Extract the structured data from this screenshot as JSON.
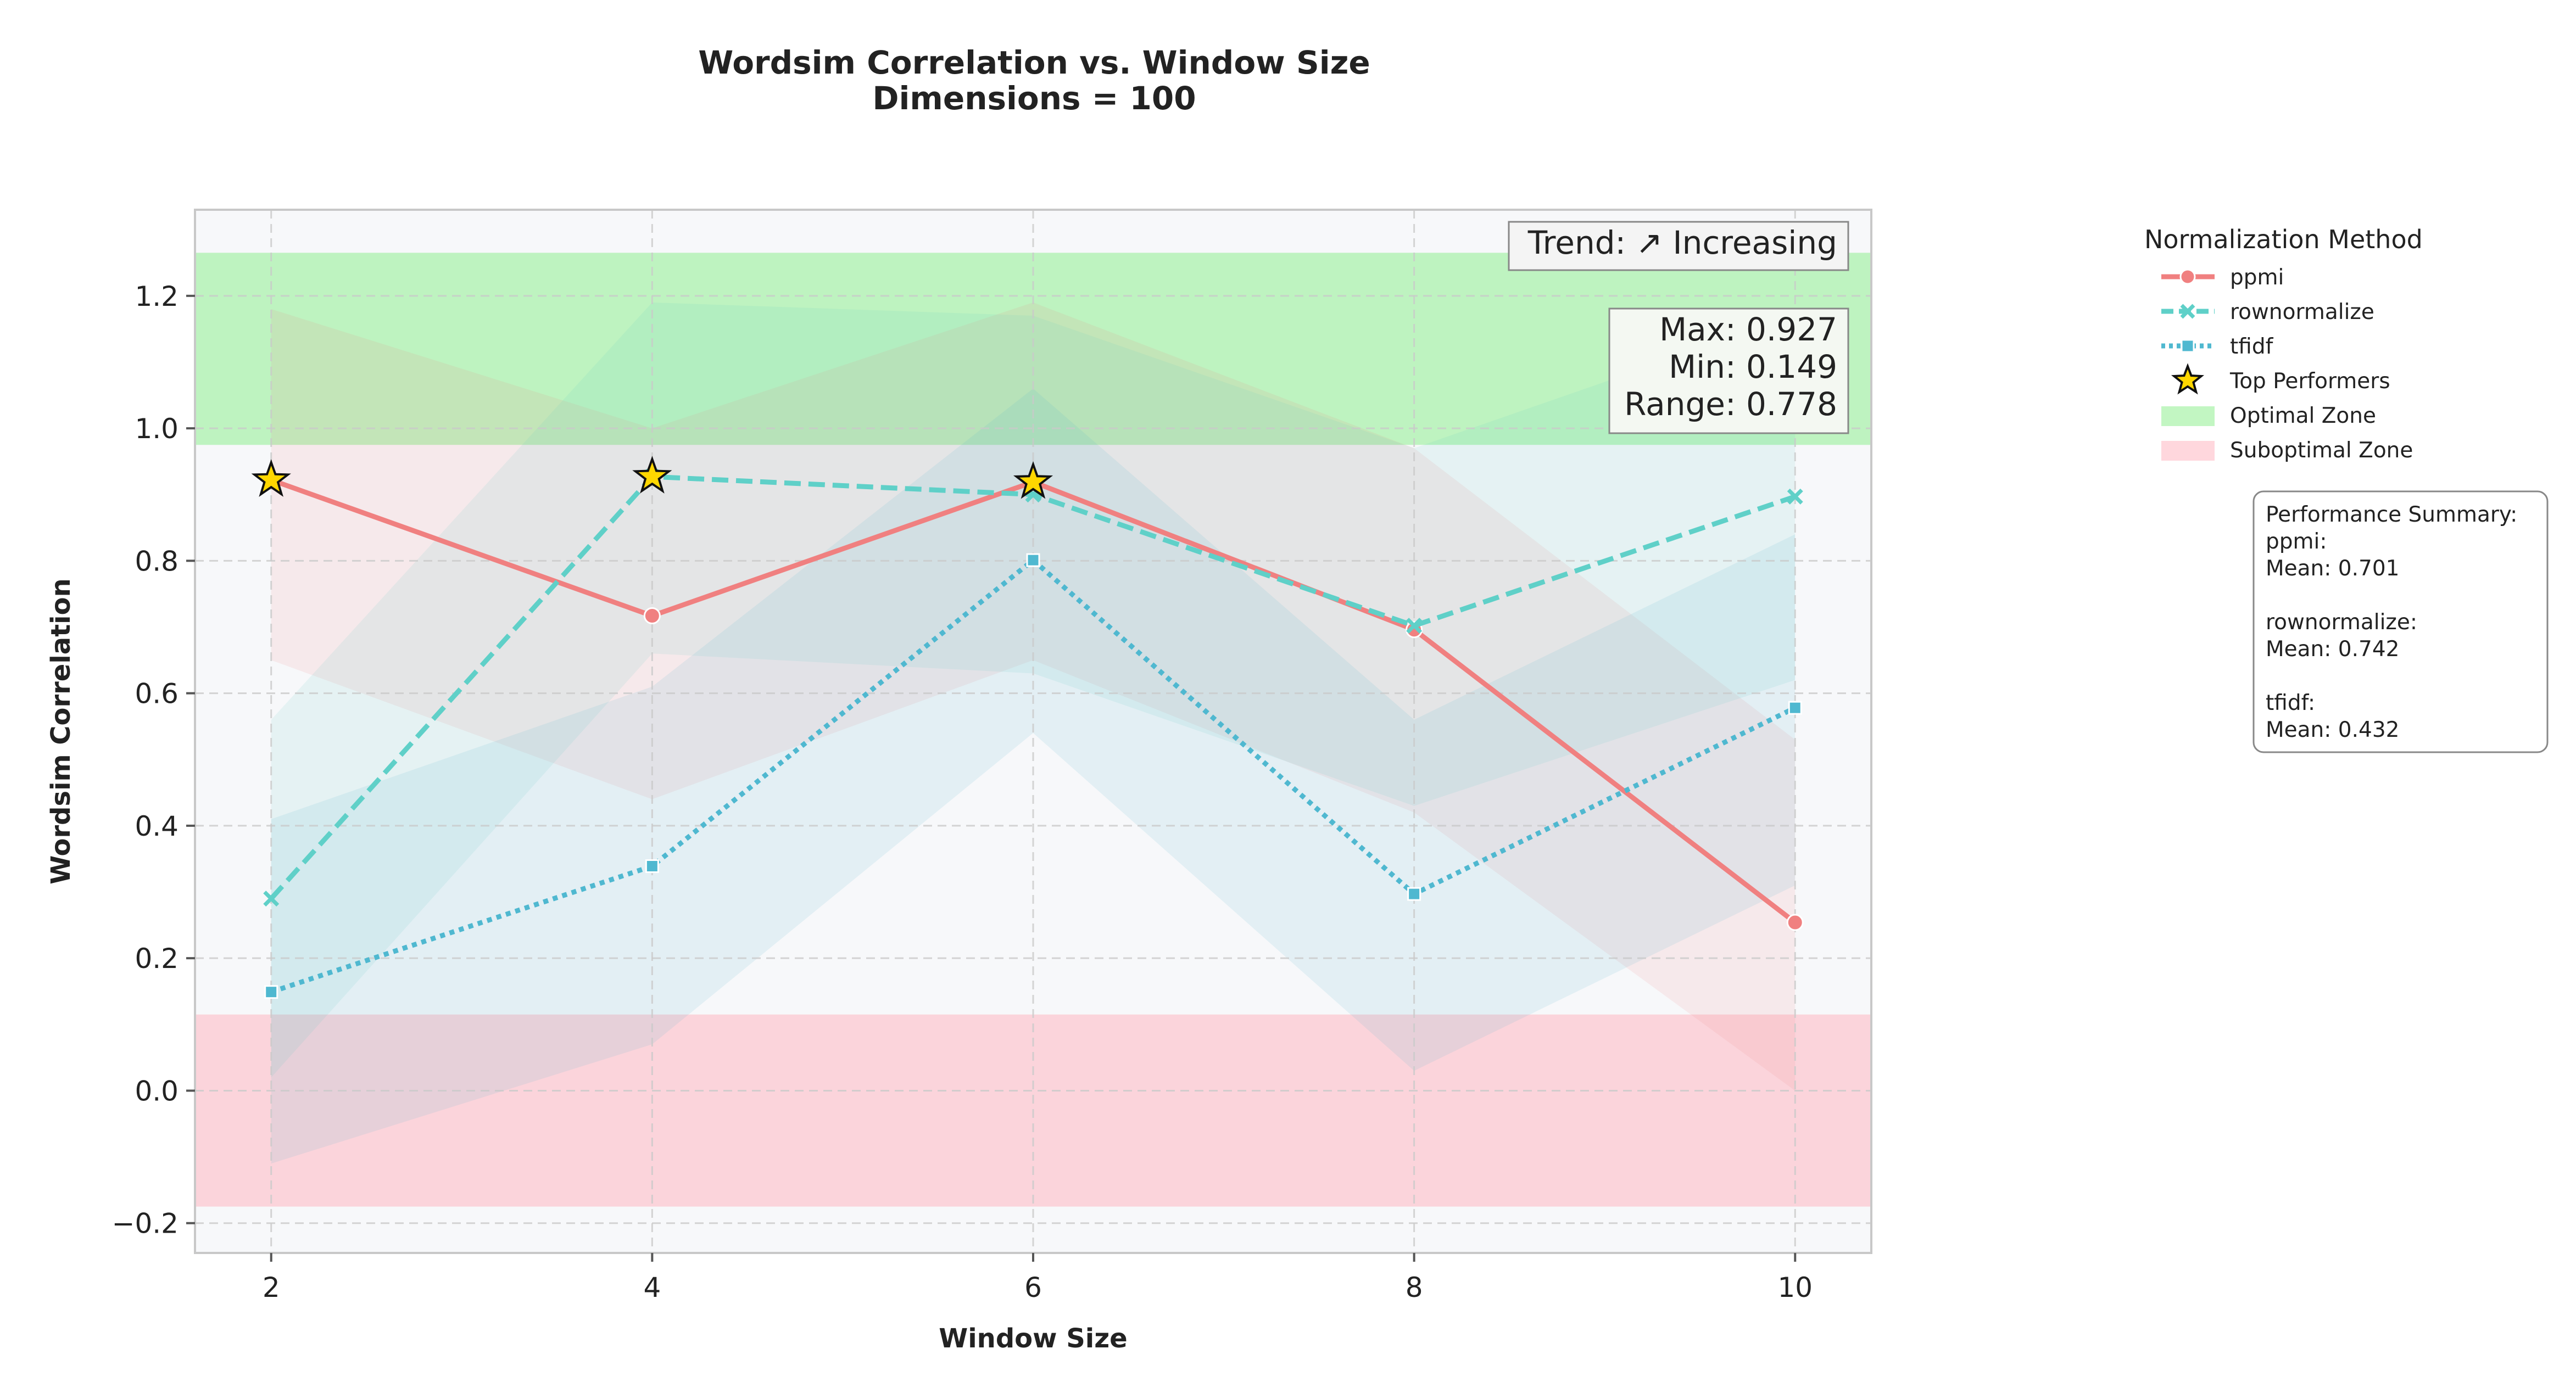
{
  "chart_data": {
    "type": "line",
    "title": "Wordsim Correlation vs. Window Size",
    "subtitle": "Dimensions = 100",
    "xlabel": "Window Size",
    "ylabel": "Wordsim Correlation",
    "x": [
      2,
      4,
      6,
      8,
      10
    ],
    "xlim": [
      1.6,
      10.4
    ],
    "ylim": [
      -0.245,
      1.33
    ],
    "xticks": [
      2,
      4,
      6,
      8,
      10
    ],
    "yticks": [
      -0.2,
      0.0,
      0.2,
      0.4,
      0.6,
      0.8,
      1.0,
      1.2
    ],
    "ytick_labels": [
      "−0.2",
      "0.0",
      "0.2",
      "0.4",
      "0.6",
      "0.8",
      "1.0",
      "1.2"
    ],
    "grid": true,
    "series": [
      {
        "name": "ppmi",
        "values": [
          0.922,
          0.717,
          0.919,
          0.696,
          0.254
        ],
        "color": "#f08080",
        "line_style": "solid",
        "marker": "circle"
      },
      {
        "name": "rownormalize",
        "values": [
          0.29,
          0.927,
          0.9,
          0.702,
          0.897
        ],
        "color": "#5fd0c8",
        "line_style": "dashed",
        "marker": "x"
      },
      {
        "name": "tfidf",
        "values": [
          0.149,
          0.339,
          0.801,
          0.297,
          0.578
        ],
        "color": "#4fb8d0",
        "line_style": "dotted",
        "marker": "square"
      }
    ],
    "top_performers": {
      "label": "Top Performers",
      "points": [
        [
          2,
          0.922
        ],
        [
          4,
          0.927
        ],
        [
          6,
          0.919
        ]
      ],
      "color": "#ffd700"
    },
    "optimal_zone": {
      "label": "Optimal Zone",
      "range": [
        0.975,
        1.265
      ],
      "color": "#90ee90"
    },
    "suboptimal_zone": {
      "label": "Suboptimal Zone",
      "range": [
        -0.175,
        0.115
      ],
      "color": "#ffb6c1"
    },
    "confidence_bands": [
      {
        "series": "ppmi",
        "lower": [
          0.65,
          0.44,
          0.65,
          0.42,
          0.0
        ],
        "upper": [
          1.18,
          1.0,
          1.19,
          0.97,
          0.53
        ],
        "color": "#f08080"
      },
      {
        "series": "rownormalize",
        "lower": [
          0.02,
          0.66,
          0.63,
          0.43,
          0.62
        ],
        "upper": [
          0.56,
          1.19,
          1.17,
          0.97,
          1.17
        ],
        "color": "#5fd0c8"
      },
      {
        "series": "tfidf",
        "lower": [
          -0.11,
          0.07,
          0.54,
          0.03,
          0.31
        ],
        "upper": [
          0.41,
          0.61,
          1.06,
          0.56,
          0.84
        ],
        "color": "#4fb8d0"
      }
    ],
    "legend": {
      "title": "Normalization Method",
      "position": "outside-right"
    },
    "annotations": {
      "trend": "Trend: ↗ Increasing",
      "stats": [
        "Max: 0.927",
        "Min: 0.149",
        "Range: 0.778"
      ],
      "summary": [
        "Performance Summary:",
        "ppmi:",
        "Mean: 0.701",
        "",
        "rownormalize:",
        "Mean: 0.742",
        "",
        "tfidf:",
        "Mean: 0.432"
      ]
    }
  }
}
